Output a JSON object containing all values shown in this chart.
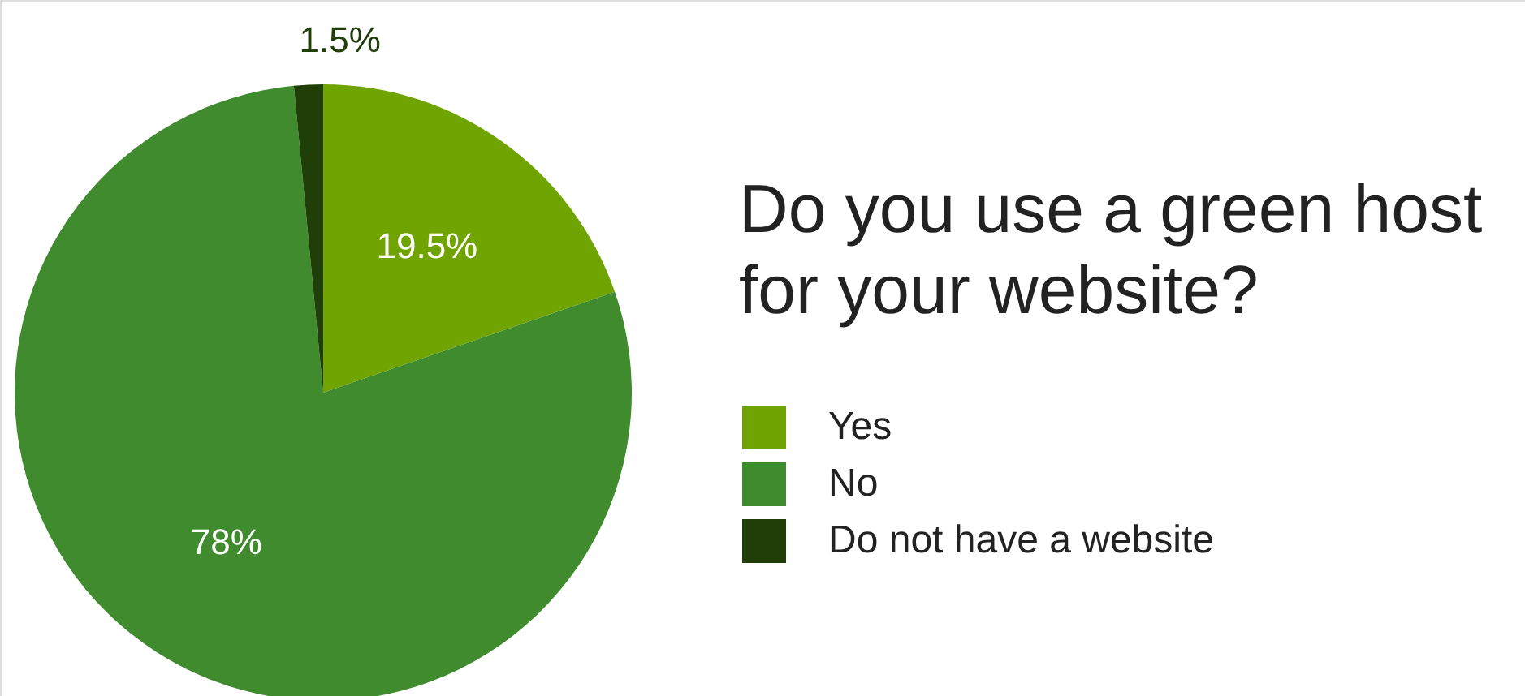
{
  "chart_data": {
    "type": "pie",
    "title": "Do you use a green host\nfor your website?",
    "categories": [
      "Yes",
      "No",
      "Do not have a website"
    ],
    "values": [
      19.5,
      78,
      1.5
    ],
    "colors": [
      "#70a402",
      "#3f8b2e",
      "#1f3e08"
    ],
    "value_labels": [
      "19.5%",
      "78%",
      "1.5%"
    ],
    "legend": "right"
  }
}
